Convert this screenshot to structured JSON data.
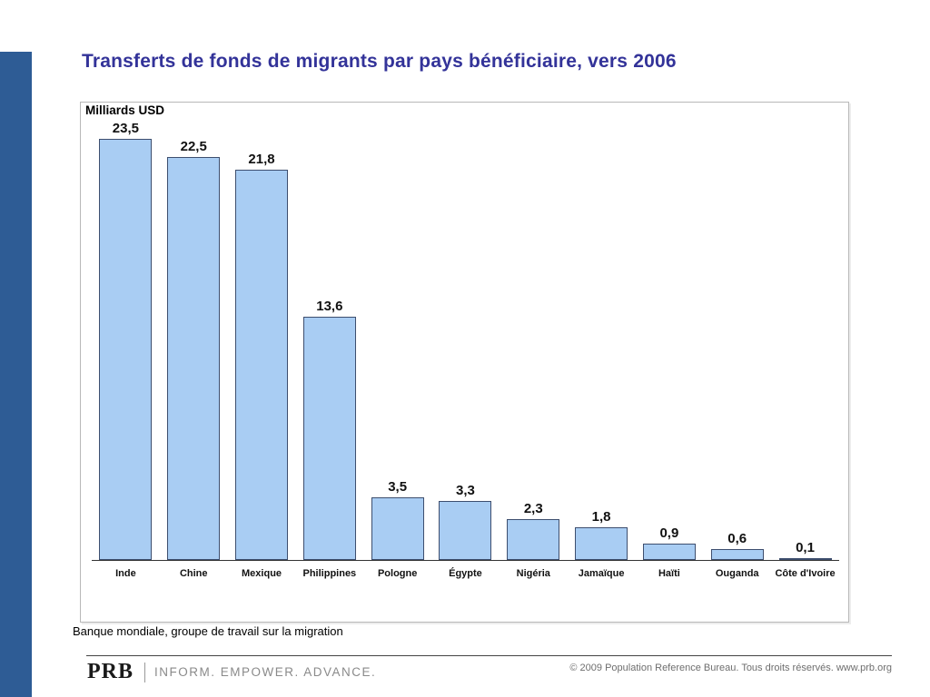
{
  "slide": {
    "title": "Transferts de fonds de migrants par pays bénéficiaire, vers 2006",
    "source": "Banque mondiale, groupe de travail sur la migration",
    "footer": {
      "logo": "PRB",
      "tagline": "INFORM. EMPOWER. ADVANCE.",
      "copyright": "© 2009 Population Reference Bureau. Tous droits réservés. www.prb.org"
    }
  },
  "colors": {
    "accent_sidebar": "#2E5C95",
    "title_text": "#333399",
    "bar_fill": "#A9CDF3",
    "bar_border": "#3D4E6E"
  },
  "chart_data": {
    "type": "bar",
    "title": "Transferts de fonds de migrants par pays bénéficiaire, vers 2006",
    "ylabel": "Milliards USD",
    "xlabel": "",
    "categories": [
      "Inde",
      "Chine",
      "Mexique",
      "Philippines",
      "Pologne",
      "Égypte",
      "Nigéria",
      "Jamaïque",
      "Haïti",
      "Ouganda",
      "Côte d'Ivoire"
    ],
    "values": [
      23.5,
      22.5,
      21.8,
      13.6,
      3.5,
      3.3,
      2.3,
      1.8,
      0.9,
      0.6,
      0.1
    ],
    "value_labels": [
      "23,5",
      "22,5",
      "21,8",
      "13,6",
      "3,5",
      "3,3",
      "2,3",
      "1,8",
      "0,9",
      "0,6",
      "0,1"
    ],
    "ylim": [
      0,
      25.6
    ],
    "grid": false,
    "legend": false,
    "bar_fill": "#A9CDF3",
    "bar_border": "#3D4E6E"
  }
}
